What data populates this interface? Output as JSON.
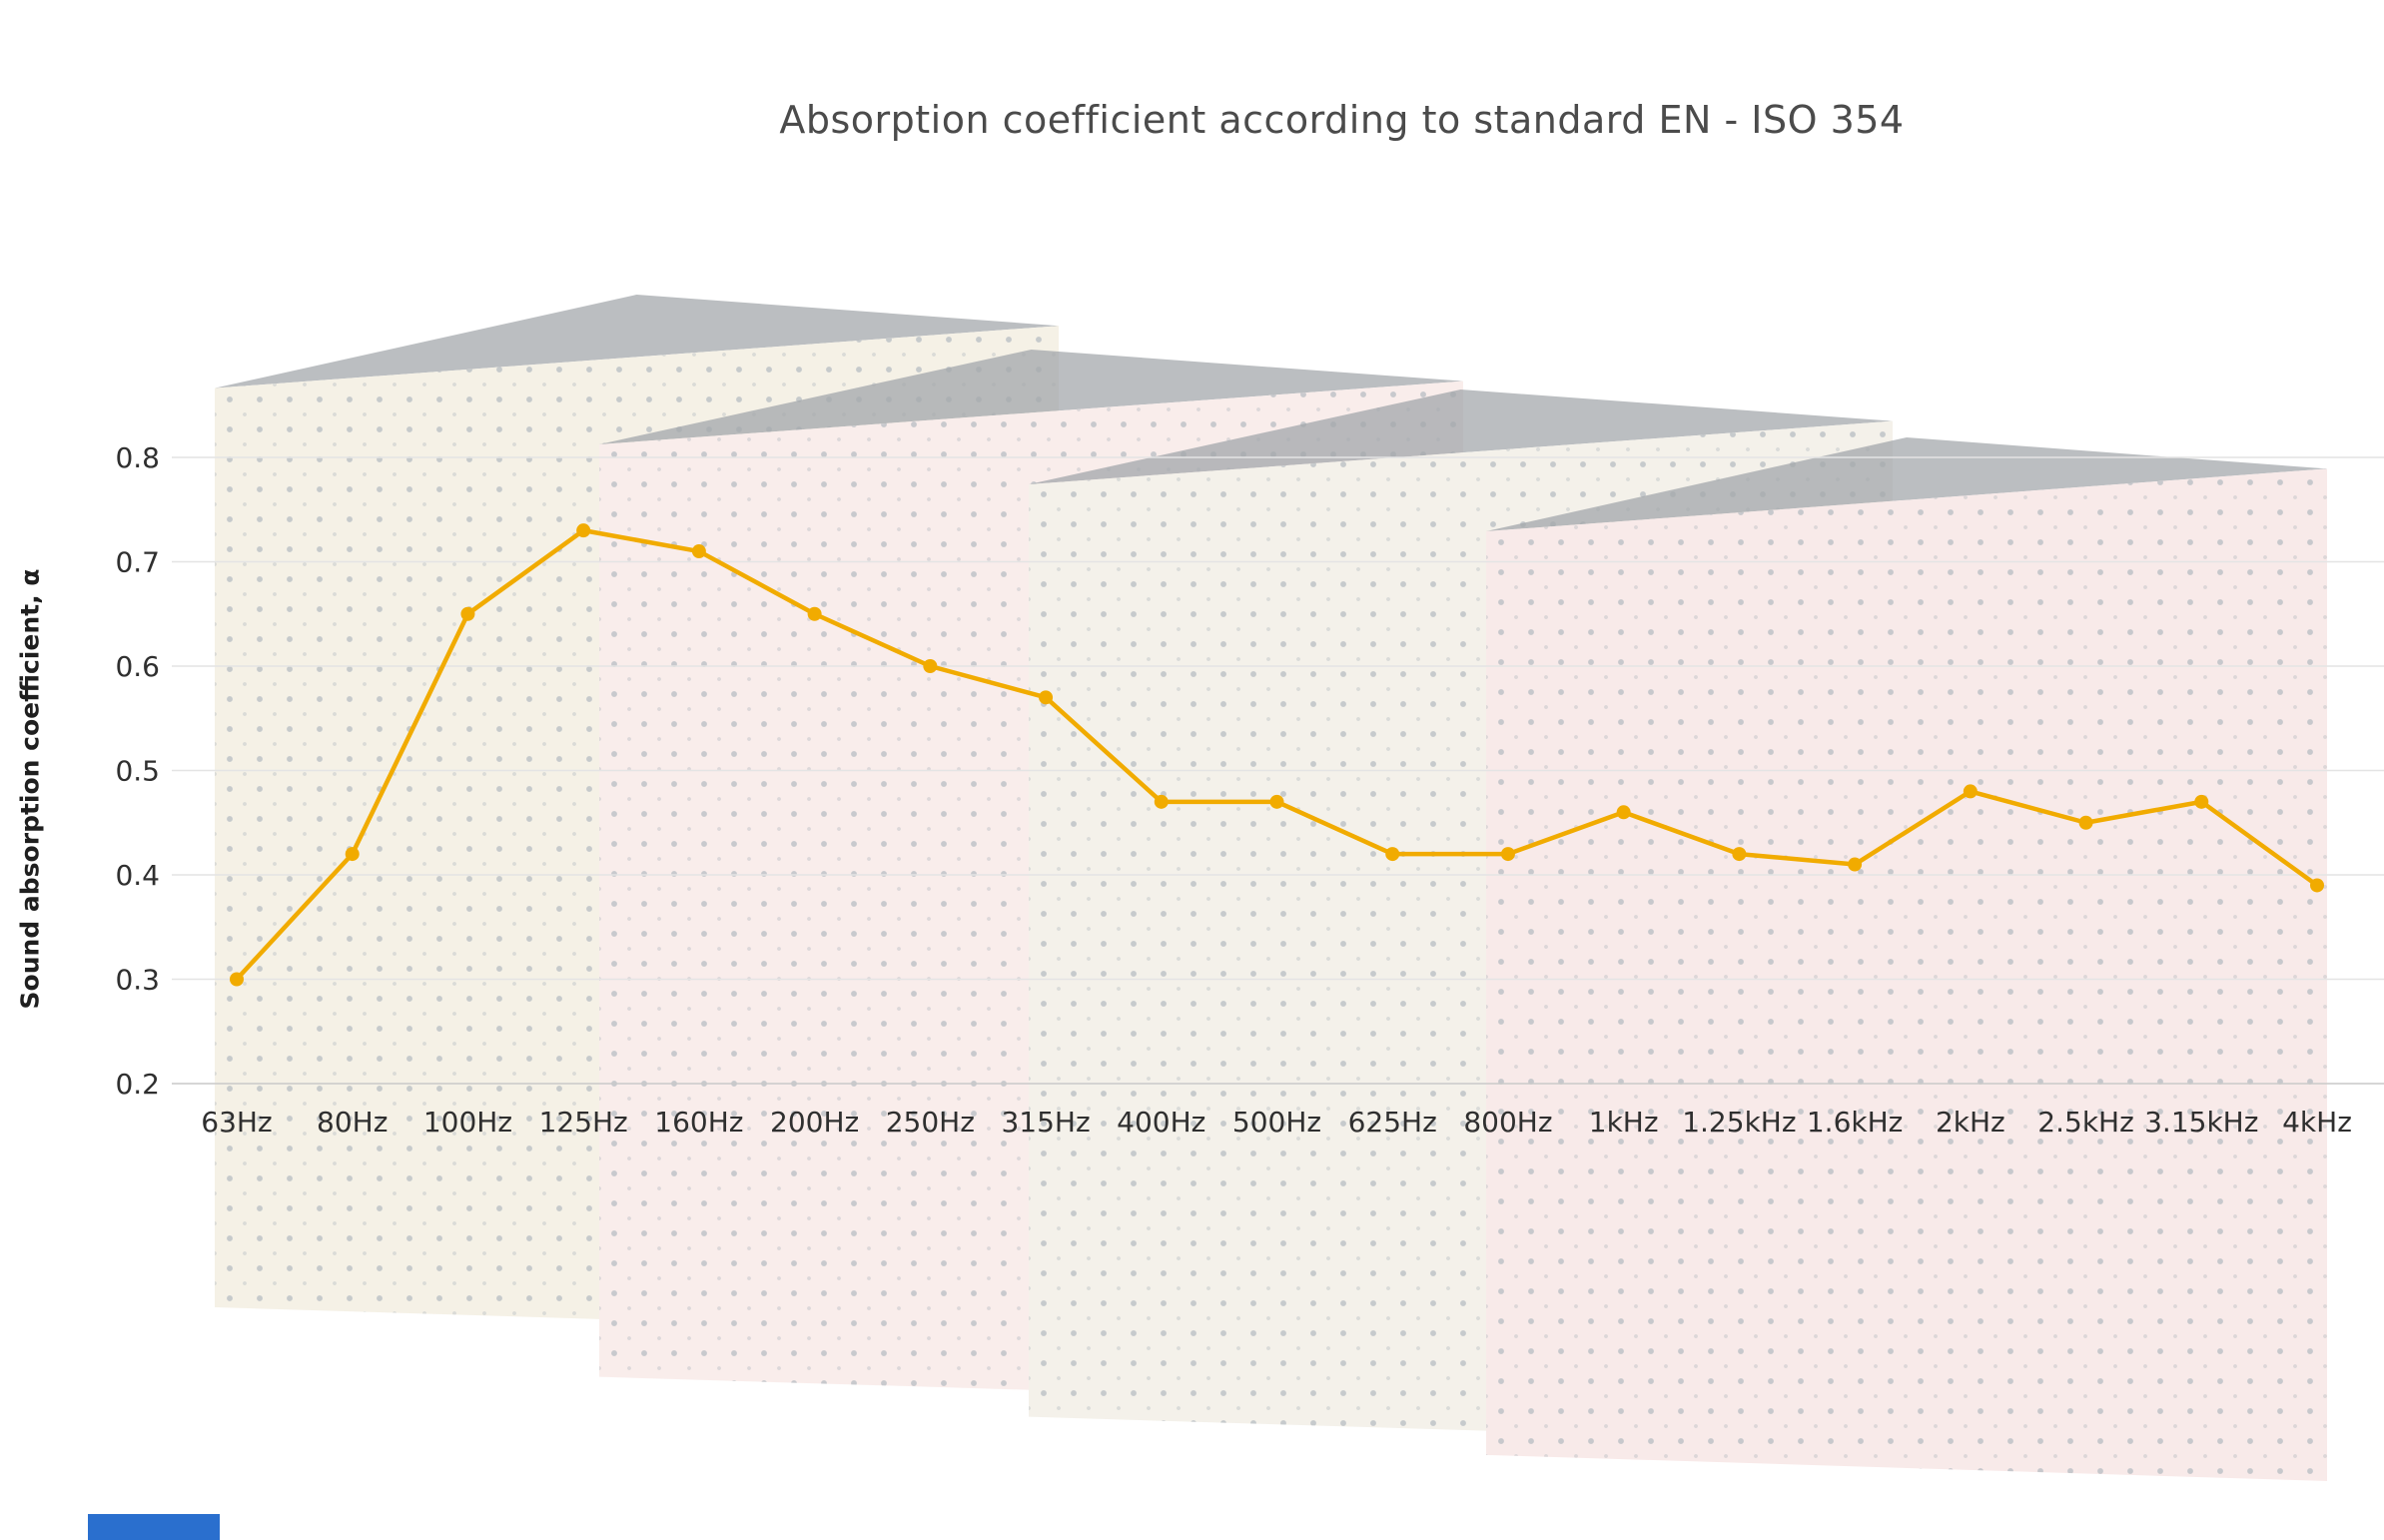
{
  "chart_data": {
    "type": "line",
    "title": "Absorption coefficient according to standard EN - ISO 354",
    "xlabel": "",
    "ylabel": "Sound absorption coefficient, α",
    "categories": [
      "63Hz",
      "80Hz",
      "100Hz",
      "125Hz",
      "160Hz",
      "200Hz",
      "250Hz",
      "315Hz",
      "400Hz",
      "500Hz",
      "625Hz",
      "800Hz",
      "1kHz",
      "1.25kHz",
      "1.6kHz",
      "2kHz",
      "2.5kHz",
      "3.15kHz",
      "4kHz"
    ],
    "values": [
      0.3,
      0.42,
      0.65,
      0.73,
      0.71,
      0.65,
      0.6,
      0.57,
      0.47,
      0.47,
      0.42,
      0.42,
      0.46,
      0.42,
      0.41,
      0.48,
      0.45,
      0.47,
      0.39
    ],
    "ylim": [
      0.2,
      0.8
    ],
    "yticks": [
      "0.8",
      "0.7",
      "0.6",
      "0.5",
      "0.4",
      "0.3",
      "0.2"
    ],
    "grid": "horizontal",
    "legend": "none",
    "marker": "circle",
    "color": "#f1ab00",
    "gridline_color": "#e4e4e4",
    "axis_line_color": "#c9c9c9",
    "tick_label_color": "#2f2f2f"
  },
  "footer": {
    "accent_color": "#2a6fce"
  }
}
